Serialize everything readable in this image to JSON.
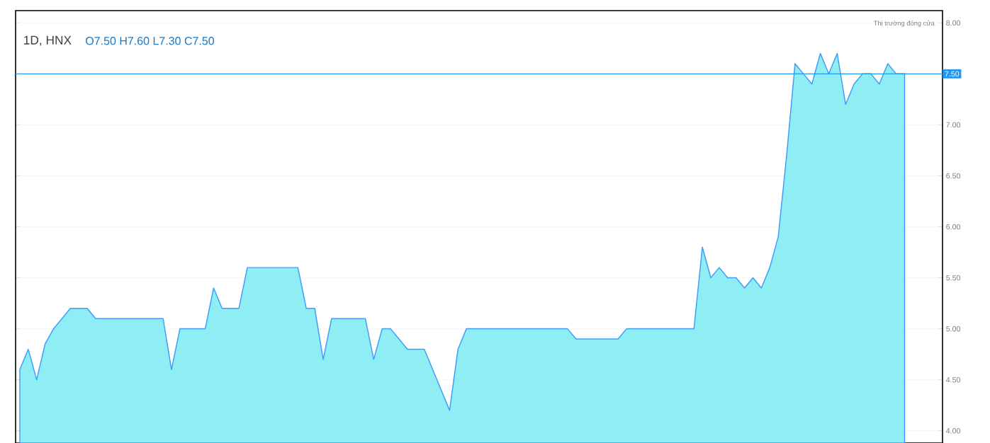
{
  "chart_data": {
    "type": "area",
    "title": "1D, HNX",
    "categories": [
      null,
      null,
      null,
      null,
      null,
      null,
      null,
      null,
      null,
      null,
      null,
      null,
      null,
      null,
      null,
      null,
      null,
      null,
      null,
      null,
      null,
      null,
      null,
      null,
      null,
      null,
      null,
      null,
      null,
      null,
      null,
      null,
      null,
      null,
      null,
      null,
      null,
      null,
      null,
      null,
      null,
      null,
      null,
      null,
      null,
      null,
      null,
      null,
      null,
      null,
      null,
      null,
      null,
      null,
      null,
      null,
      null,
      null,
      null,
      null,
      null,
      null,
      null,
      null,
      null,
      null,
      null,
      null,
      null,
      null,
      null,
      null,
      null,
      null,
      null,
      null,
      null,
      null,
      null,
      null,
      null,
      null,
      null,
      null,
      null,
      null,
      null,
      null,
      null,
      null,
      null,
      null,
      null,
      null,
      null,
      null,
      null,
      null,
      null,
      null,
      null,
      null,
      null,
      null,
      null,
      null,
      null,
      null,
      null,
      null
    ],
    "series": [
      {
        "color": "#8eeef4",
        "values": [
          4.6,
          4.8,
          4.5,
          4.85,
          5.0,
          5.1,
          5.2,
          5.2,
          5.2,
          5.1,
          5.1,
          5.1,
          5.1,
          5.1,
          5.1,
          5.1,
          5.1,
          5.1,
          4.6,
          5.0,
          5.0,
          5.0,
          5.0,
          5.4,
          5.2,
          5.2,
          5.2,
          5.6,
          5.6,
          5.6,
          5.6,
          5.6,
          5.6,
          5.6,
          5.2,
          5.2,
          4.7,
          5.1,
          5.1,
          5.1,
          5.1,
          5.1,
          4.7,
          5.0,
          5.0,
          4.9,
          4.8,
          4.8,
          4.8,
          4.6,
          4.4,
          4.2,
          4.8,
          5.0,
          5.0,
          5.0,
          5.0,
          5.0,
          5.0,
          5.0,
          5.0,
          5.0,
          5.0,
          5.0,
          5.0,
          5.0,
          4.9,
          4.9,
          4.9,
          4.9,
          4.9,
          4.9,
          5.0,
          5.0,
          5.0,
          5.0,
          5.0,
          5.0,
          5.0,
          5.0,
          5.0,
          5.8,
          5.5,
          5.6,
          5.5,
          5.5,
          5.4,
          5.5,
          5.4,
          5.6,
          5.9,
          6.7,
          7.6,
          7.5,
          7.4,
          7.7,
          7.5,
          7.7,
          7.2,
          7.4,
          7.5,
          7.5,
          7.4,
          7.6,
          7.5,
          7.5,
          null,
          null,
          null,
          null
        ]
      }
    ],
    "ylim": [
      3.88,
      8.12
    ],
    "yticks": [
      {
        "value": 4,
        "label": "4.00"
      },
      {
        "value": 4.5,
        "label": "4.50"
      },
      {
        "value": 5,
        "label": "5.00"
      },
      {
        "value": 5.5,
        "label": "5.50"
      },
      {
        "value": 6,
        "label": "6.00"
      },
      {
        "value": 6.5,
        "label": "6.50"
      },
      {
        "value": 7,
        "label": "7.00"
      },
      {
        "value": 8,
        "label": "8.00"
      }
    ],
    "grid": "y",
    "ref_lines": [
      {
        "axis": "y",
        "value": 7.5,
        "label": "7.50",
        "color": "#2196f3"
      }
    ],
    "annotations": [
      "O7.50 H7.60 L7.30 C7.50",
      "Thị trường đóng cửa"
    ]
  }
}
